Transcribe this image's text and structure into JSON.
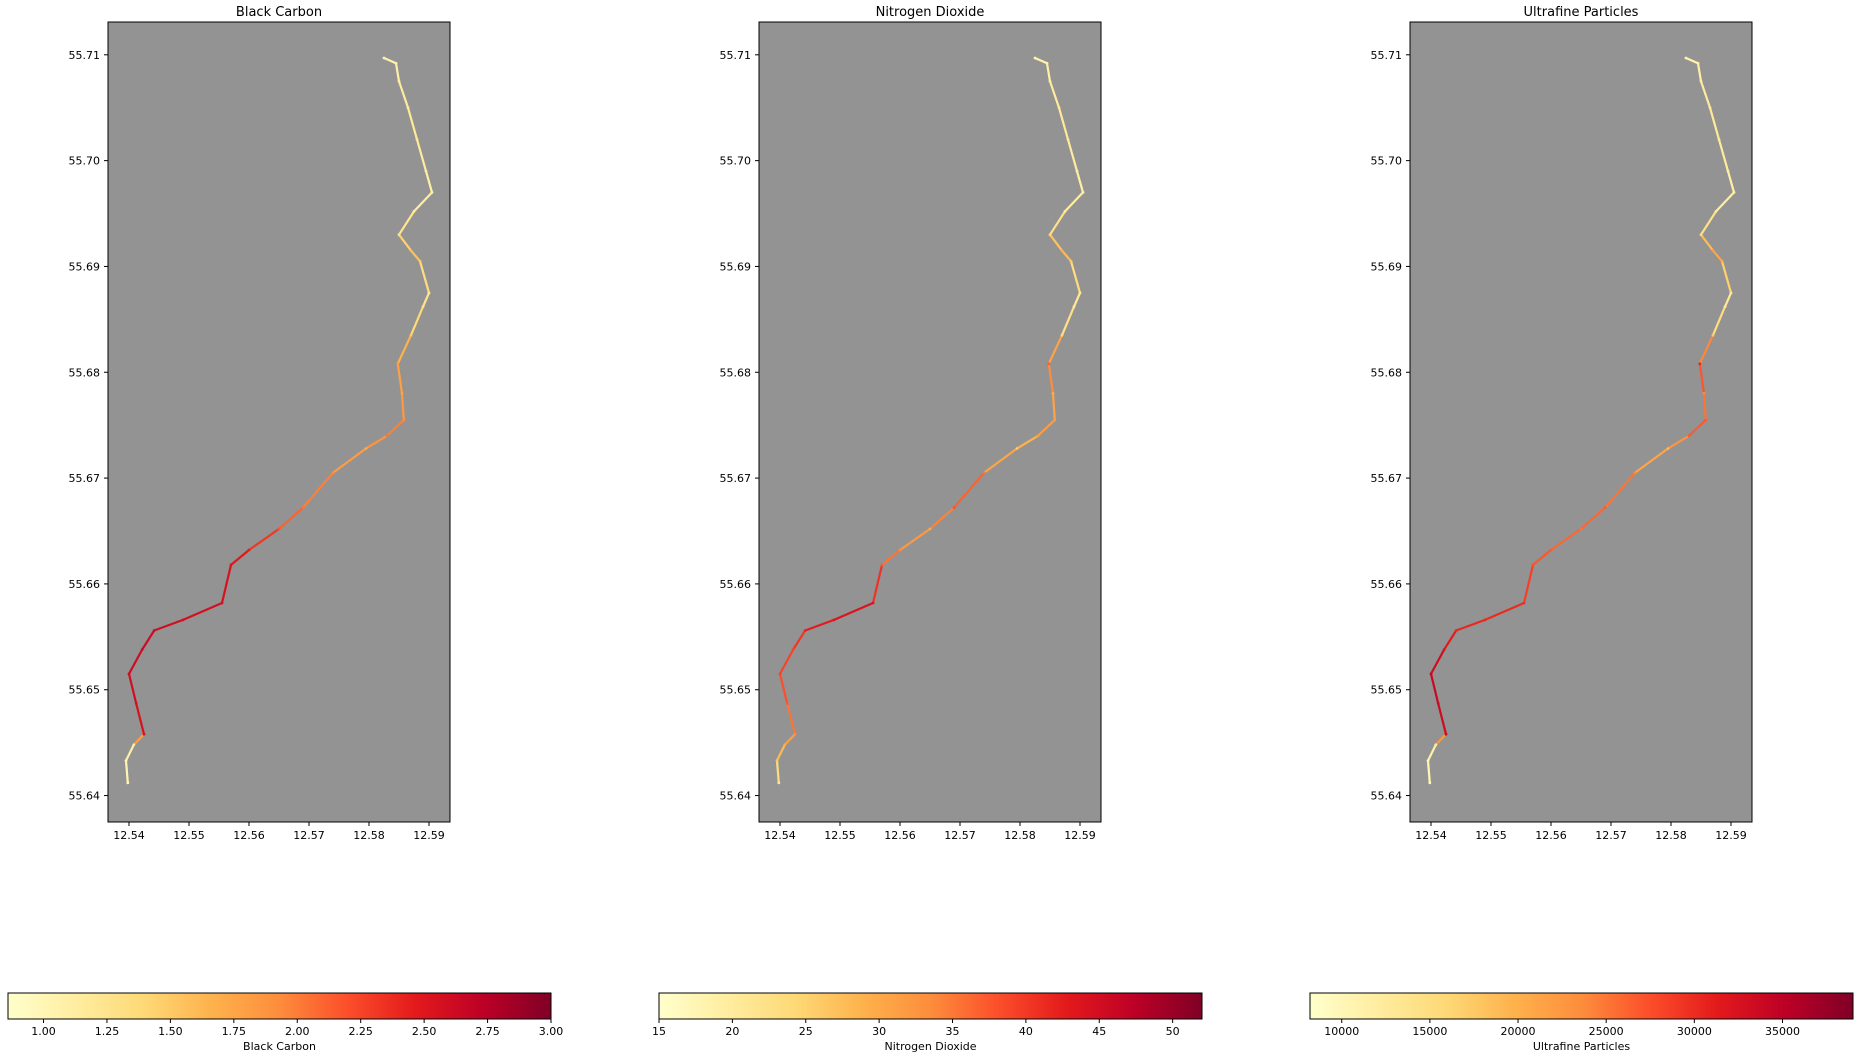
{
  "chart_data": [
    {
      "type": "scatter",
      "title": "Black Carbon",
      "xlabel": "",
      "ylabel": "",
      "xlim": [
        12.5365,
        12.5935
      ],
      "ylim": [
        55.6375,
        55.7131
      ],
      "x_ticks": [
        "12.54",
        "12.55",
        "12.56",
        "12.57",
        "12.58",
        "12.59"
      ],
      "y_ticks": [
        "55.64",
        "55.65",
        "55.66",
        "55.67",
        "55.68",
        "55.69",
        "55.70",
        "55.71"
      ],
      "background_color": "#939393",
      "colormap": "YlOrRd",
      "colorbar": {
        "label": "Black Carbon",
        "min": 0.86,
        "max": 3.0,
        "ticks": [
          "1.00",
          "1.25",
          "1.50",
          "1.75",
          "2.00",
          "2.25",
          "2.50",
          "2.75",
          "3.00"
        ]
      },
      "route": [
        {
          "lon": 12.5398,
          "lat": 55.6412,
          "level": 0.05
        },
        {
          "lon": 12.5395,
          "lat": 55.6433,
          "level": 0.08
        },
        {
          "lon": 12.5408,
          "lat": 55.6448,
          "level": 0.12
        },
        {
          "lon": 12.5425,
          "lat": 55.6458,
          "level": 0.78
        },
        {
          "lon": 12.5412,
          "lat": 55.6487,
          "level": 0.8
        },
        {
          "lon": 12.54,
          "lat": 55.6515,
          "level": 0.82
        },
        {
          "lon": 12.5422,
          "lat": 55.6538,
          "level": 0.82
        },
        {
          "lon": 12.5442,
          "lat": 55.6556,
          "level": 0.82
        },
        {
          "lon": 12.549,
          "lat": 55.6566,
          "level": 0.8
        },
        {
          "lon": 12.5555,
          "lat": 55.6582,
          "level": 0.8
        },
        {
          "lon": 12.557,
          "lat": 55.6618,
          "level": 0.78
        },
        {
          "lon": 12.56,
          "lat": 55.6632,
          "level": 0.74
        },
        {
          "lon": 12.565,
          "lat": 55.6652,
          "level": 0.62
        },
        {
          "lon": 12.569,
          "lat": 55.6672,
          "level": 0.55
        },
        {
          "lon": 12.574,
          "lat": 55.6705,
          "level": 0.5
        },
        {
          "lon": 12.5795,
          "lat": 55.6728,
          "level": 0.4
        },
        {
          "lon": 12.583,
          "lat": 55.674,
          "level": 0.55
        },
        {
          "lon": 12.5858,
          "lat": 55.6755,
          "level": 0.5
        },
        {
          "lon": 12.5855,
          "lat": 55.678,
          "level": 0.42
        },
        {
          "lon": 12.5848,
          "lat": 55.6808,
          "level": 0.45
        },
        {
          "lon": 12.587,
          "lat": 55.6835,
          "level": 0.3
        },
        {
          "lon": 12.589,
          "lat": 55.6862,
          "level": 0.2
        },
        {
          "lon": 12.59,
          "lat": 55.6875,
          "level": 0.15
        },
        {
          "lon": 12.5885,
          "lat": 55.6905,
          "level": 0.3
        },
        {
          "lon": 12.587,
          "lat": 55.6915,
          "level": 0.35
        },
        {
          "lon": 12.585,
          "lat": 55.693,
          "level": 0.2
        },
        {
          "lon": 12.5875,
          "lat": 55.6952,
          "level": 0.15
        },
        {
          "lon": 12.5905,
          "lat": 55.697,
          "level": 0.1
        },
        {
          "lon": 12.5895,
          "lat": 55.699,
          "level": 0.12
        },
        {
          "lon": 12.588,
          "lat": 55.702,
          "level": 0.15
        },
        {
          "lon": 12.5865,
          "lat": 55.705,
          "level": 0.15
        },
        {
          "lon": 12.585,
          "lat": 55.7075,
          "level": 0.12
        },
        {
          "lon": 12.5845,
          "lat": 55.7092,
          "level": 0.1
        },
        {
          "lon": 12.5825,
          "lat": 55.7097,
          "level": 0.08
        }
      ]
    },
    {
      "type": "scatter",
      "title": "Nitrogen Dioxide",
      "xlabel": "",
      "ylabel": "",
      "xlim": [
        12.5365,
        12.5935
      ],
      "ylim": [
        55.6375,
        55.7131
      ],
      "x_ticks": [
        "12.54",
        "12.55",
        "12.56",
        "12.57",
        "12.58",
        "12.59"
      ],
      "y_ticks": [
        "55.64",
        "55.65",
        "55.66",
        "55.67",
        "55.68",
        "55.69",
        "55.70",
        "55.71"
      ],
      "background_color": "#939393",
      "colormap": "YlOrRd",
      "colorbar": {
        "label": "Nitrogen Dioxide",
        "min": 15,
        "max": 52,
        "ticks": [
          "15",
          "20",
          "25",
          "30",
          "35",
          "40",
          "45",
          "50"
        ]
      },
      "route": [
        {
          "lon": 12.5398,
          "lat": 55.6412,
          "level": 0.15
        },
        {
          "lon": 12.5395,
          "lat": 55.6433,
          "level": 0.3
        },
        {
          "lon": 12.5408,
          "lat": 55.6448,
          "level": 0.4
        },
        {
          "lon": 12.5425,
          "lat": 55.6458,
          "level": 0.5
        },
        {
          "lon": 12.5412,
          "lat": 55.6487,
          "level": 0.6
        },
        {
          "lon": 12.54,
          "lat": 55.6515,
          "level": 0.65
        },
        {
          "lon": 12.5422,
          "lat": 55.6538,
          "level": 0.65
        },
        {
          "lon": 12.5442,
          "lat": 55.6556,
          "level": 0.72
        },
        {
          "lon": 12.549,
          "lat": 55.6566,
          "level": 0.78
        },
        {
          "lon": 12.5555,
          "lat": 55.6582,
          "level": 0.78
        },
        {
          "lon": 12.557,
          "lat": 55.6618,
          "level": 0.6
        },
        {
          "lon": 12.56,
          "lat": 55.6632,
          "level": 0.5
        },
        {
          "lon": 12.565,
          "lat": 55.6652,
          "level": 0.42
        },
        {
          "lon": 12.569,
          "lat": 55.6672,
          "level": 0.62
        },
        {
          "lon": 12.574,
          "lat": 55.6705,
          "level": 0.55
        },
        {
          "lon": 12.5795,
          "lat": 55.6728,
          "level": 0.3
        },
        {
          "lon": 12.583,
          "lat": 55.674,
          "level": 0.45
        },
        {
          "lon": 12.5858,
          "lat": 55.6755,
          "level": 0.45
        },
        {
          "lon": 12.5855,
          "lat": 55.678,
          "level": 0.4
        },
        {
          "lon": 12.5848,
          "lat": 55.6808,
          "level": 0.6
        },
        {
          "lon": 12.587,
          "lat": 55.6835,
          "level": 0.25
        },
        {
          "lon": 12.589,
          "lat": 55.6862,
          "level": 0.15
        },
        {
          "lon": 12.59,
          "lat": 55.6875,
          "level": 0.15
        },
        {
          "lon": 12.5885,
          "lat": 55.6905,
          "level": 0.3
        },
        {
          "lon": 12.587,
          "lat": 55.6915,
          "level": 0.4
        },
        {
          "lon": 12.585,
          "lat": 55.693,
          "level": 0.25
        },
        {
          "lon": 12.5875,
          "lat": 55.6952,
          "level": 0.15
        },
        {
          "lon": 12.5905,
          "lat": 55.697,
          "level": 0.1
        },
        {
          "lon": 12.5895,
          "lat": 55.699,
          "level": 0.12
        },
        {
          "lon": 12.588,
          "lat": 55.702,
          "level": 0.15
        },
        {
          "lon": 12.5865,
          "lat": 55.705,
          "level": 0.15
        },
        {
          "lon": 12.585,
          "lat": 55.7075,
          "level": 0.12
        },
        {
          "lon": 12.5845,
          "lat": 55.7092,
          "level": 0.1
        },
        {
          "lon": 12.5825,
          "lat": 55.7097,
          "level": 0.08
        }
      ]
    },
    {
      "type": "scatter",
      "title": "Ultrafine Particles",
      "xlabel": "",
      "ylabel": "",
      "xlim": [
        12.5365,
        12.5935
      ],
      "ylim": [
        55.6375,
        55.7131
      ],
      "x_ticks": [
        "12.54",
        "12.55",
        "12.56",
        "12.57",
        "12.58",
        "12.59"
      ],
      "y_ticks": [
        "55.64",
        "55.65",
        "55.66",
        "55.67",
        "55.68",
        "55.69",
        "55.70",
        "55.71"
      ],
      "background_color": "#939393",
      "colormap": "YlOrRd",
      "colorbar": {
        "label": "Ultrafine Particles",
        "min": 8200,
        "max": 39000,
        "ticks": [
          "10000",
          "15000",
          "20000",
          "25000",
          "30000",
          "35000"
        ]
      },
      "route": [
        {
          "lon": 12.5398,
          "lat": 55.6412,
          "level": 0.05
        },
        {
          "lon": 12.5395,
          "lat": 55.6433,
          "level": 0.08
        },
        {
          "lon": 12.5408,
          "lat": 55.6448,
          "level": 0.12
        },
        {
          "lon": 12.5425,
          "lat": 55.6458,
          "level": 0.82
        },
        {
          "lon": 12.5412,
          "lat": 55.6487,
          "level": 0.82
        },
        {
          "lon": 12.54,
          "lat": 55.6515,
          "level": 0.85
        },
        {
          "lon": 12.5422,
          "lat": 55.6538,
          "level": 0.78
        },
        {
          "lon": 12.5442,
          "lat": 55.6556,
          "level": 0.72
        },
        {
          "lon": 12.549,
          "lat": 55.6566,
          "level": 0.72
        },
        {
          "lon": 12.5555,
          "lat": 55.6582,
          "level": 0.7
        },
        {
          "lon": 12.557,
          "lat": 55.6618,
          "level": 0.62
        },
        {
          "lon": 12.56,
          "lat": 55.6632,
          "level": 0.6
        },
        {
          "lon": 12.565,
          "lat": 55.6652,
          "level": 0.55
        },
        {
          "lon": 12.569,
          "lat": 55.6672,
          "level": 0.6
        },
        {
          "lon": 12.574,
          "lat": 55.6705,
          "level": 0.5
        },
        {
          "lon": 12.5795,
          "lat": 55.6728,
          "level": 0.35
        },
        {
          "lon": 12.583,
          "lat": 55.674,
          "level": 0.6
        },
        {
          "lon": 12.5858,
          "lat": 55.6755,
          "level": 0.6
        },
        {
          "lon": 12.5855,
          "lat": 55.678,
          "level": 0.5
        },
        {
          "lon": 12.5848,
          "lat": 55.6808,
          "level": 0.72
        },
        {
          "lon": 12.587,
          "lat": 55.6835,
          "level": 0.3
        },
        {
          "lon": 12.589,
          "lat": 55.6862,
          "level": 0.15
        },
        {
          "lon": 12.59,
          "lat": 55.6875,
          "level": 0.15
        },
        {
          "lon": 12.5885,
          "lat": 55.6905,
          "level": 0.4
        },
        {
          "lon": 12.587,
          "lat": 55.6915,
          "level": 0.45
        },
        {
          "lon": 12.585,
          "lat": 55.693,
          "level": 0.25
        },
        {
          "lon": 12.5875,
          "lat": 55.6952,
          "level": 0.15
        },
        {
          "lon": 12.5905,
          "lat": 55.697,
          "level": 0.1
        },
        {
          "lon": 12.5895,
          "lat": 55.699,
          "level": 0.12
        },
        {
          "lon": 12.588,
          "lat": 55.702,
          "level": 0.15
        },
        {
          "lon": 12.5865,
          "lat": 55.705,
          "level": 0.15
        },
        {
          "lon": 12.585,
          "lat": 55.7075,
          "level": 0.12
        },
        {
          "lon": 12.5845,
          "lat": 55.7092,
          "level": 0.1
        },
        {
          "lon": 12.5825,
          "lat": 55.7097,
          "level": 0.08
        }
      ]
    }
  ]
}
